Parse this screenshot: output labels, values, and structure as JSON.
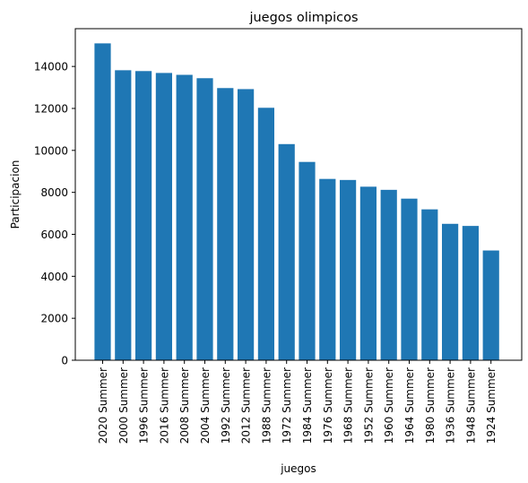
{
  "chart_data": {
    "type": "bar",
    "title": "juegos olimpicos",
    "xlabel": "juegos",
    "ylabel": "Participacion",
    "ylim": [
      0,
      15800
    ],
    "yticks": [
      0,
      2000,
      4000,
      6000,
      8000,
      10000,
      12000,
      14000
    ],
    "grid": false,
    "bar_color": "#1f77b4",
    "categories": [
      "2020 Summer",
      "2000 Summer",
      "1996 Summer",
      "2016 Summer",
      "2008 Summer",
      "2004 Summer",
      "1992 Summer",
      "2012 Summer",
      "1988 Summer",
      "1972 Summer",
      "1984 Summer",
      "1976 Summer",
      "1968 Summer",
      "1952 Summer",
      "1960 Summer",
      "1964 Summer",
      "1980 Summer",
      "1936 Summer",
      "1948 Summer",
      "1924 Summer"
    ],
    "values": [
      15100,
      13820,
      13780,
      13690,
      13600,
      13440,
      12970,
      12920,
      12030,
      10300,
      9450,
      8640,
      8590,
      8270,
      8120,
      7700,
      7190,
      6500,
      6400,
      5230
    ]
  }
}
